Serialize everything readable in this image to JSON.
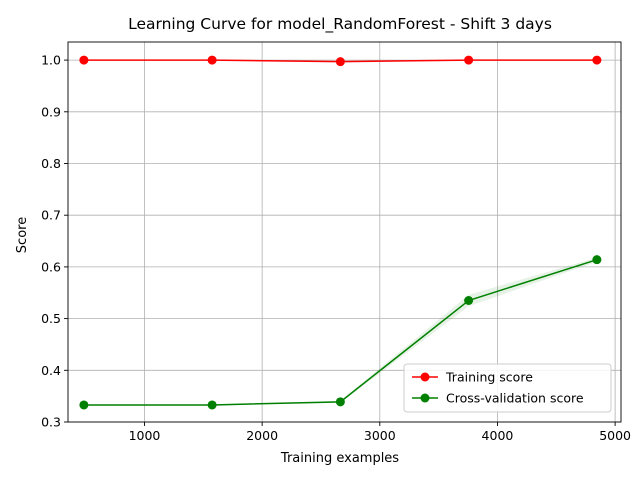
{
  "chart_data": {
    "type": "line",
    "title": "Learning Curve for model_RandomForest - Shift 3 days",
    "xlabel": "Training examples",
    "ylabel": "Score",
    "xlim": [
      350,
      5050
    ],
    "ylim": [
      0.3,
      1.035
    ],
    "xticks": [
      1000,
      2000,
      3000,
      4000,
      5000
    ],
    "yticks": [
      0.3,
      0.4,
      0.5,
      0.6,
      0.7,
      0.8,
      0.9,
      1.0
    ],
    "ytick_labels": [
      "0.3",
      "0.4",
      "0.5",
      "0.6",
      "0.7",
      "0.8",
      "0.9",
      "1.0"
    ],
    "grid": true,
    "legend": "lower-right",
    "x": [
      485,
      1575,
      2665,
      3755,
      4845
    ],
    "series": [
      {
        "name": "Training score",
        "color": "#ff0000",
        "band_color": "#ff0000",
        "values": [
          1.0,
          1.0,
          0.997,
          1.0,
          1.0
        ],
        "std": [
          0.0,
          0.0,
          0.002,
          0.0,
          0.0
        ]
      },
      {
        "name": "Cross-validation score",
        "color": "#008000",
        "band_color": "#008000",
        "values": [
          0.333,
          0.333,
          0.339,
          0.535,
          0.614
        ],
        "std": [
          0.0,
          0.0,
          0.002,
          0.011,
          0.004
        ]
      }
    ]
  }
}
